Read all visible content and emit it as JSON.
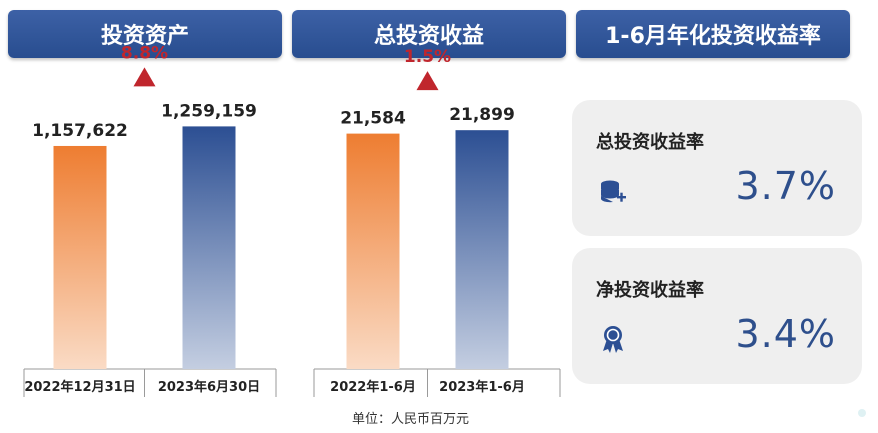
{
  "headers": [
    "投资资产",
    "总投资收益",
    "1-6月年化投资收益率"
  ],
  "chart_data": [
    {
      "type": "bar",
      "title": "投资资产",
      "categories": [
        "2022年12月31日",
        "2023年6月30日"
      ],
      "values": [
        1157622,
        1259159
      ],
      "value_labels": [
        "1,157,622",
        "1,259,159"
      ],
      "change": "8.8%",
      "ylim": [
        0,
        1500000
      ],
      "colors": [
        "#ee7d31",
        "#2c4f93"
      ]
    },
    {
      "type": "bar",
      "title": "总投资收益",
      "categories": [
        "2022年1-6月",
        "2023年1-6月"
      ],
      "values": [
        21584,
        21899
      ],
      "value_labels": [
        "21,584",
        "21,899"
      ],
      "change": "1.5%",
      "ylim": [
        0,
        26500
      ],
      "colors": [
        "#ee7d31",
        "#2c4f93"
      ]
    }
  ],
  "cards": [
    {
      "title": "总投资收益率",
      "value": "3.7%",
      "icon": "database-plus-icon"
    },
    {
      "title": "净投资收益率",
      "value": "3.4%",
      "icon": "award-ribbon-icon"
    }
  ],
  "unit_note": "单位：人民币百万元",
  "colors": {
    "header": "#2d5092",
    "up_arrow": "#c0262d",
    "card_value": "#2e4f8c"
  }
}
